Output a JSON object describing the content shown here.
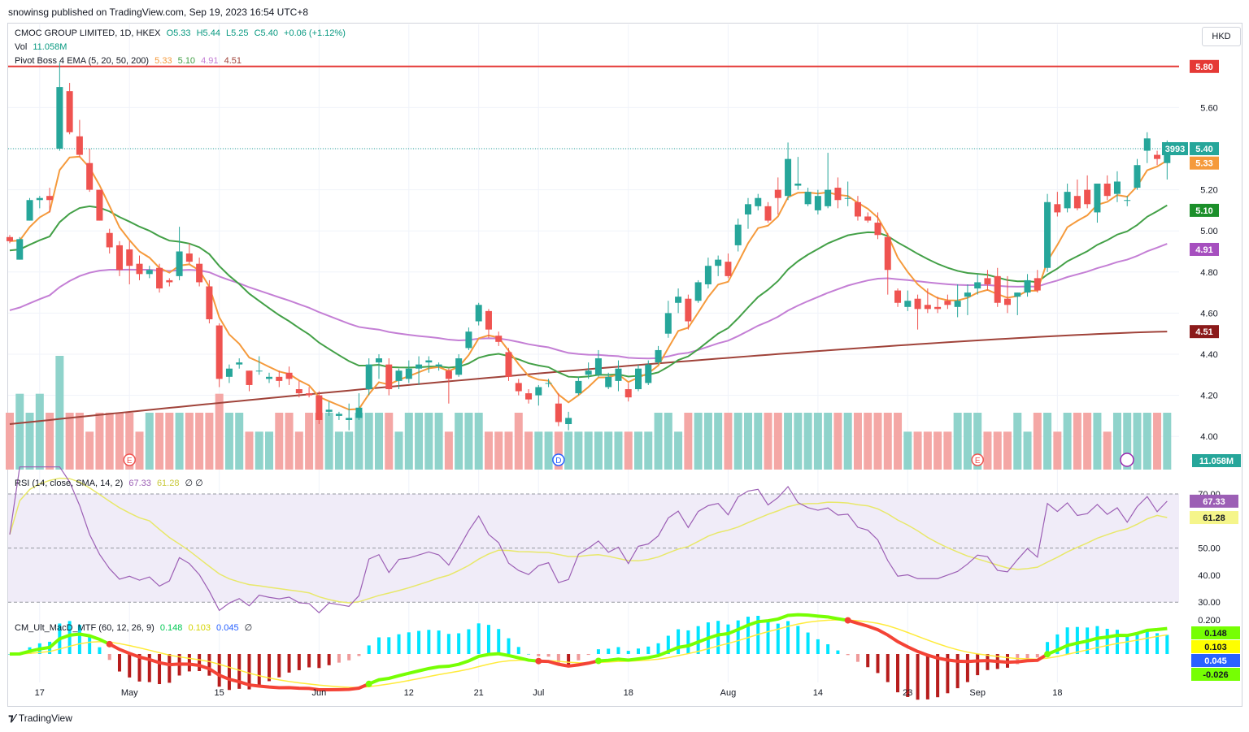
{
  "header": {
    "publisher": "snowinsg published on TradingView.com, Sep 19, 2023 16:54 UTC+8"
  },
  "currency": "HKD",
  "footer": {
    "brand": "TradingView"
  },
  "main_legend": {
    "symbol": "CMOC GROUP LIMITED, 1D, HKEX",
    "open": "O5.33",
    "high": "H5.44",
    "low": "L5.25",
    "close": "C5.40",
    "change": "+0.06 (+1.12%)",
    "vol_label": "Vol",
    "vol_value": "11.058M",
    "ema_label": "Pivot Boss 4 EMA (5, 20, 50, 200)",
    "ema5": "5.33",
    "ema20": "5.10",
    "ema50": "4.91",
    "ema200": "4.51"
  },
  "rsi_legend": {
    "label": "RSI (14, close, SMA, 14, 2)",
    "rsi": "67.33",
    "sma": "61.28",
    "extra": "∅ ∅"
  },
  "macd_legend": {
    "label": "CM_Ult_MacD_MTF (60, 12, 26, 9)",
    "macd": "0.148",
    "signal": "0.103",
    "hist": "0.045",
    "extra": "∅"
  },
  "colors": {
    "up": "#26a69a",
    "down": "#ef5350",
    "ema5": "#f59a3c",
    "ema20": "#43a047",
    "ema50": "#c47fd5",
    "ema200": "#a0433a",
    "rsi": "#9c5fb5",
    "rsi_sma": "#e8e86a",
    "hline": "#e53935"
  },
  "chart_data": {
    "type": "candlestick",
    "symbol": "CMOC GROUP LIMITED",
    "interval": "1D",
    "exchange": "HKEX",
    "y_ticks": [
      "5.60",
      "5.40",
      "5.20",
      "5.00",
      "4.80",
      "4.60",
      "4.40",
      "4.20",
      "4.00"
    ],
    "x_ticks": [
      "17",
      "May",
      "15",
      "Jun",
      "12",
      "21",
      "Jul",
      "18",
      "Aug",
      "14",
      "23",
      "Sep",
      "18"
    ],
    "price_labels": {
      "hline": "5.80",
      "last": "5.40",
      "countdown": "3993",
      "ema5": "5.33",
      "ema20": "5.10",
      "ema50": "4.91",
      "ema200": "4.51",
      "volume": "11.058M"
    },
    "horizontal_line": 5.8,
    "candles": [
      [
        4.97,
        4.98,
        4.94,
        4.95
      ],
      [
        4.86,
        4.97,
        4.86,
        4.96
      ],
      [
        5.05,
        5.16,
        5.05,
        5.15
      ],
      [
        5.15,
        5.17,
        5.11,
        5.16
      ],
      [
        5.17,
        5.21,
        5.09,
        5.15
      ],
      [
        5.4,
        5.82,
        5.39,
        5.7
      ],
      [
        5.68,
        5.72,
        5.47,
        5.48
      ],
      [
        5.46,
        5.54,
        5.36,
        5.37
      ],
      [
        5.33,
        5.4,
        5.19,
        5.2
      ],
      [
        5.2,
        5.2,
        5.05,
        5.05
      ],
      [
        4.99,
        5.01,
        4.89,
        4.92
      ],
      [
        4.93,
        4.95,
        4.78,
        4.81
      ],
      [
        4.91,
        4.95,
        4.74,
        4.83
      ],
      [
        4.84,
        4.88,
        4.76,
        4.79
      ],
      [
        4.79,
        4.83,
        4.77,
        4.81
      ],
      [
        4.82,
        4.84,
        4.7,
        4.72
      ],
      [
        4.76,
        4.77,
        4.73,
        4.75
      ],
      [
        4.78,
        5.02,
        4.76,
        4.9
      ],
      [
        4.89,
        4.94,
        4.84,
        4.85
      ],
      [
        4.84,
        4.87,
        4.73,
        4.75
      ],
      [
        4.73,
        4.76,
        4.55,
        4.57
      ],
      [
        4.54,
        4.55,
        4.24,
        4.28
      ],
      [
        4.29,
        4.35,
        4.26,
        4.33
      ],
      [
        4.35,
        4.38,
        4.33,
        4.36
      ],
      [
        4.32,
        4.32,
        4.22,
        4.25
      ],
      [
        4.32,
        4.39,
        4.3,
        4.32
      ],
      [
        4.28,
        4.31,
        4.26,
        4.29
      ],
      [
        4.29,
        4.32,
        4.24,
        4.27
      ],
      [
        4.31,
        4.34,
        4.25,
        4.28
      ],
      [
        4.23,
        4.27,
        4.19,
        4.21
      ],
      [
        4.21,
        4.24,
        4.19,
        4.2
      ],
      [
        4.2,
        4.22,
        4.06,
        4.08
      ],
      [
        4.12,
        4.17,
        4.1,
        4.13
      ],
      [
        4.1,
        4.12,
        4.08,
        4.11
      ],
      [
        4.08,
        4.16,
        4.03,
        4.09
      ],
      [
        4.09,
        4.21,
        4.08,
        4.14
      ],
      [
        4.23,
        4.38,
        4.2,
        4.35
      ],
      [
        4.36,
        4.4,
        4.28,
        4.38
      ],
      [
        4.35,
        4.38,
        4.2,
        4.23
      ],
      [
        4.27,
        4.33,
        4.23,
        4.32
      ],
      [
        4.28,
        4.37,
        4.26,
        4.33
      ],
      [
        4.33,
        4.39,
        4.25,
        4.35
      ],
      [
        4.36,
        4.39,
        4.31,
        4.37
      ],
      [
        4.34,
        4.36,
        4.32,
        4.35
      ],
      [
        4.32,
        4.33,
        4.16,
        4.28
      ],
      [
        4.3,
        4.4,
        4.29,
        4.38
      ],
      [
        4.43,
        4.53,
        4.42,
        4.51
      ],
      [
        4.56,
        4.65,
        4.54,
        4.64
      ],
      [
        4.61,
        4.62,
        4.48,
        4.52
      ],
      [
        4.49,
        4.51,
        4.44,
        4.46
      ],
      [
        4.41,
        4.43,
        4.27,
        4.29
      ],
      [
        4.26,
        4.28,
        4.2,
        4.22
      ],
      [
        4.21,
        4.23,
        4.16,
        4.18
      ],
      [
        4.2,
        4.25,
        4.15,
        4.24
      ],
      [
        4.26,
        4.28,
        4.24,
        4.26
      ],
      [
        4.16,
        4.21,
        4.05,
        4.07
      ],
      [
        4.06,
        4.12,
        4.03,
        4.09
      ],
      [
        4.21,
        4.29,
        4.2,
        4.27
      ],
      [
        4.3,
        4.36,
        4.28,
        4.32
      ],
      [
        4.3,
        4.42,
        4.29,
        4.38
      ],
      [
        4.24,
        4.31,
        4.23,
        4.29
      ],
      [
        4.27,
        4.37,
        4.22,
        4.33
      ],
      [
        4.23,
        4.26,
        4.17,
        4.19
      ],
      [
        4.23,
        4.35,
        4.22,
        4.33
      ],
      [
        4.26,
        4.37,
        4.25,
        4.35
      ],
      [
        4.36,
        4.44,
        4.35,
        4.42
      ],
      [
        4.5,
        4.66,
        4.48,
        4.6
      ],
      [
        4.65,
        4.72,
        4.6,
        4.68
      ],
      [
        4.67,
        4.69,
        4.52,
        4.56
      ],
      [
        4.66,
        4.76,
        4.65,
        4.75
      ],
      [
        4.74,
        4.87,
        4.72,
        4.83
      ],
      [
        4.83,
        4.88,
        4.78,
        4.86
      ],
      [
        4.85,
        4.89,
        4.77,
        4.78
      ],
      [
        4.93,
        5.06,
        4.9,
        5.03
      ],
      [
        5.08,
        5.16,
        5.01,
        5.13
      ],
      [
        5.12,
        5.18,
        5.1,
        5.16
      ],
      [
        5.12,
        5.14,
        5.04,
        5.05
      ],
      [
        5.2,
        5.26,
        5.08,
        5.16
      ],
      [
        5.17,
        5.43,
        5.15,
        5.35
      ],
      [
        5.22,
        5.36,
        5.2,
        5.23
      ],
      [
        5.13,
        5.21,
        5.12,
        5.19
      ],
      [
        5.1,
        5.2,
        5.08,
        5.17
      ],
      [
        5.12,
        5.38,
        5.11,
        5.2
      ],
      [
        5.21,
        5.26,
        5.11,
        5.15
      ],
      [
        5.16,
        5.24,
        5.12,
        5.16
      ],
      [
        5.14,
        5.17,
        5.05,
        5.07
      ],
      [
        5.07,
        5.09,
        5.04,
        5.05
      ],
      [
        5.04,
        5.09,
        4.96,
        4.98
      ],
      [
        4.97,
        4.99,
        4.69,
        4.81
      ],
      [
        4.71,
        4.72,
        4.63,
        4.65
      ],
      [
        4.63,
        4.71,
        4.61,
        4.66
      ],
      [
        4.67,
        4.69,
        4.52,
        4.62
      ],
      [
        4.64,
        4.72,
        4.6,
        4.62
      ],
      [
        4.63,
        4.68,
        4.6,
        4.62
      ],
      [
        4.66,
        4.69,
        4.62,
        4.64
      ],
      [
        4.63,
        4.74,
        4.58,
        4.66
      ],
      [
        4.68,
        4.74,
        4.59,
        4.7
      ],
      [
        4.72,
        4.79,
        4.69,
        4.75
      ],
      [
        4.77,
        4.81,
        4.71,
        4.74
      ],
      [
        4.78,
        4.82,
        4.63,
        4.65
      ],
      [
        4.67,
        4.78,
        4.6,
        4.64
      ],
      [
        4.68,
        4.7,
        4.59,
        4.7
      ],
      [
        4.7,
        4.79,
        4.68,
        4.76
      ],
      [
        4.77,
        4.81,
        4.7,
        4.71
      ],
      [
        4.82,
        5.18,
        4.8,
        5.14
      ],
      [
        5.13,
        5.19,
        5.07,
        5.09
      ],
      [
        5.11,
        5.23,
        5.09,
        5.19
      ],
      [
        5.17,
        5.25,
        5.1,
        5.11
      ],
      [
        5.2,
        5.27,
        5.11,
        5.13
      ],
      [
        5.09,
        5.23,
        5.04,
        5.23
      ],
      [
        5.23,
        5.27,
        5.15,
        5.17
      ],
      [
        5.18,
        5.29,
        5.14,
        5.24
      ],
      [
        5.15,
        5.17,
        5.12,
        5.15
      ],
      [
        5.21,
        5.35,
        5.2,
        5.32
      ],
      [
        5.39,
        5.48,
        5.33,
        5.45
      ],
      [
        5.37,
        5.39,
        5.32,
        5.35
      ],
      [
        5.33,
        5.44,
        5.25,
        5.4
      ]
    ],
    "volume": [
      3,
      4,
      3,
      4,
      3,
      6,
      3,
      3,
      2,
      3,
      3,
      3,
      3,
      2,
      3,
      3,
      3,
      3,
      3,
      3,
      3,
      4,
      3,
      3,
      2,
      2,
      2,
      3,
      3,
      2,
      3,
      3,
      3,
      2,
      2,
      3,
      3,
      3,
      3,
      2,
      3,
      3,
      3,
      3,
      2,
      3,
      3,
      3,
      2,
      2,
      2,
      3,
      2,
      2,
      2,
      2,
      2,
      2,
      2,
      2,
      2,
      2,
      2,
      2,
      2,
      3,
      3,
      2,
      3,
      3,
      3,
      3,
      3,
      3,
      3,
      3,
      3,
      3,
      3,
      3,
      3,
      3,
      3,
      3,
      3,
      3,
      3,
      3,
      3,
      3,
      2,
      2,
      2,
      2,
      2,
      3,
      3,
      3,
      2,
      2,
      2,
      3,
      2,
      3,
      3,
      2,
      3,
      3,
      3,
      3,
      2,
      3,
      3,
      3,
      3,
      3,
      3
    ],
    "ema200_range": [
      4.06,
      4.51
    ],
    "rsi": {
      "ticks": [
        "70.00",
        "50.00",
        "40.00",
        "30.00"
      ],
      "last": 67.33,
      "sma_last": 61.28,
      "overbought": 70,
      "oversold": 30,
      "middle": 50
    },
    "macd": {
      "ticks": [
        "0.200"
      ],
      "labels": [
        "0.148",
        "0.103",
        "0.045",
        "-0.026"
      ]
    }
  }
}
